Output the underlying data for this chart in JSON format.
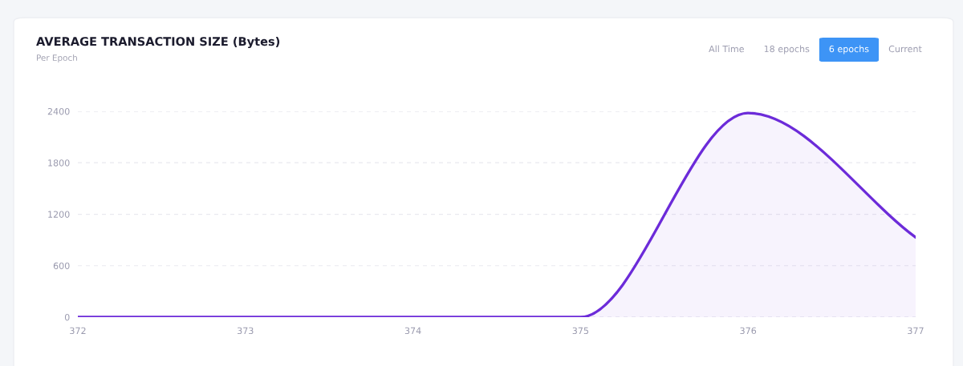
{
  "chart_data": {
    "type": "area",
    "title": "AVERAGE TRANSACTION SIZE (Bytes)",
    "subtitle": "Per Epoch",
    "x": [
      372,
      373,
      374,
      375,
      376,
      377
    ],
    "series": [
      {
        "color": "#6c2bd9",
        "values": [
          0,
          0,
          0,
          0,
          2380,
          930
        ]
      }
    ],
    "xlim": [
      372,
      377
    ],
    "xticks": [
      372,
      373,
      374,
      375,
      376,
      377
    ],
    "ylim": [
      0,
      2400
    ],
    "yticks": [
      0,
      600,
      1200,
      1800,
      2400
    ],
    "grid": "y",
    "annotations": [
      "All Time",
      "18 epochs",
      "6 epochs",
      "Current"
    ]
  }
}
